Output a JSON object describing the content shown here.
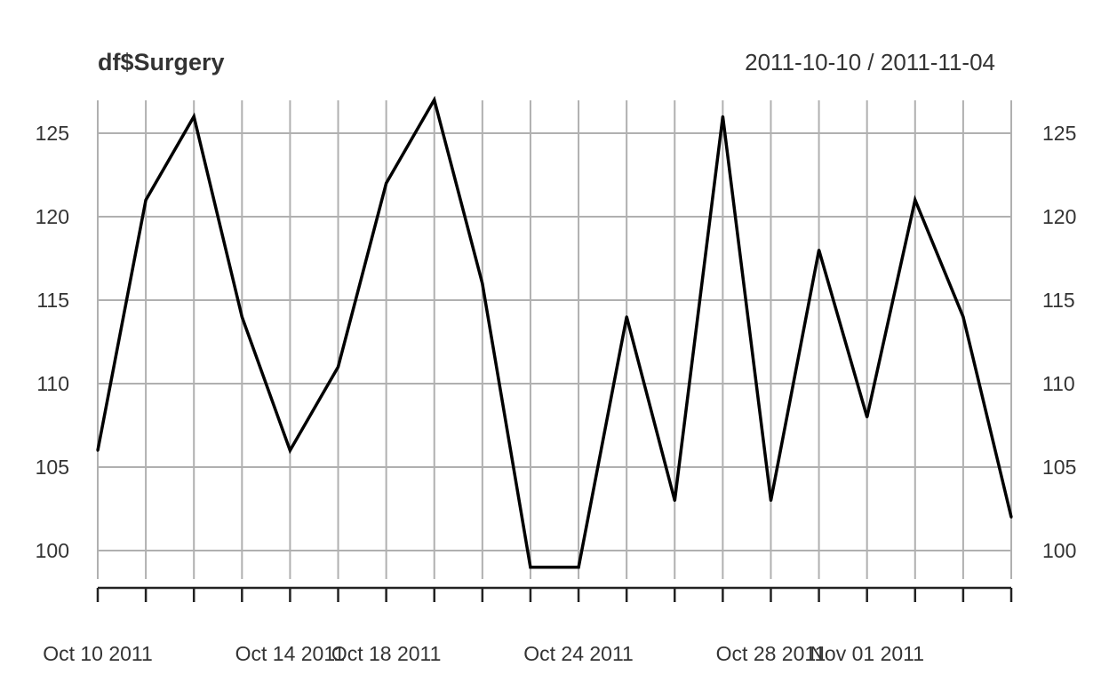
{
  "chart_data": {
    "type": "line",
    "title": "df$Surgery",
    "date_range": "2011-10-10 / 2011-11-04",
    "xlabel": "",
    "ylabel": "",
    "ylim": [
      98.3,
      127
    ],
    "grid": true,
    "y_ticks": [
      "100",
      "105",
      "110",
      "115",
      "120",
      "125"
    ],
    "x_tick_labels": [
      {
        "date": "2011-10-10",
        "label": "Oct 10 2011"
      },
      {
        "date": "2011-10-14",
        "label": "Oct 14 2011"
      },
      {
        "date": "2011-10-18",
        "label": "Oct 18 2011"
      },
      {
        "date": "2011-10-24",
        "label": "Oct 24 2011"
      },
      {
        "date": "2011-10-28",
        "label": "Oct 28 2011"
      },
      {
        "date": "2011-11-01",
        "label": "Nov 01 2011"
      }
    ],
    "series": [
      {
        "x": [
          "2011-10-10",
          "2011-10-11",
          "2011-10-12",
          "2011-10-13",
          "2011-10-14",
          "2011-10-17",
          "2011-10-18",
          "2011-10-19",
          "2011-10-20",
          "2011-10-21",
          "2011-10-24",
          "2011-10-25",
          "2011-10-26",
          "2011-10-27",
          "2011-10-28",
          "2011-10-31",
          "2011-11-01",
          "2011-11-02",
          "2011-11-03",
          "2011-11-04"
        ],
        "values": [
          106,
          121,
          126,
          114,
          106,
          111,
          122,
          127,
          116,
          99,
          99,
          114,
          103,
          126,
          103,
          118,
          108,
          121,
          114,
          102
        ]
      }
    ]
  }
}
